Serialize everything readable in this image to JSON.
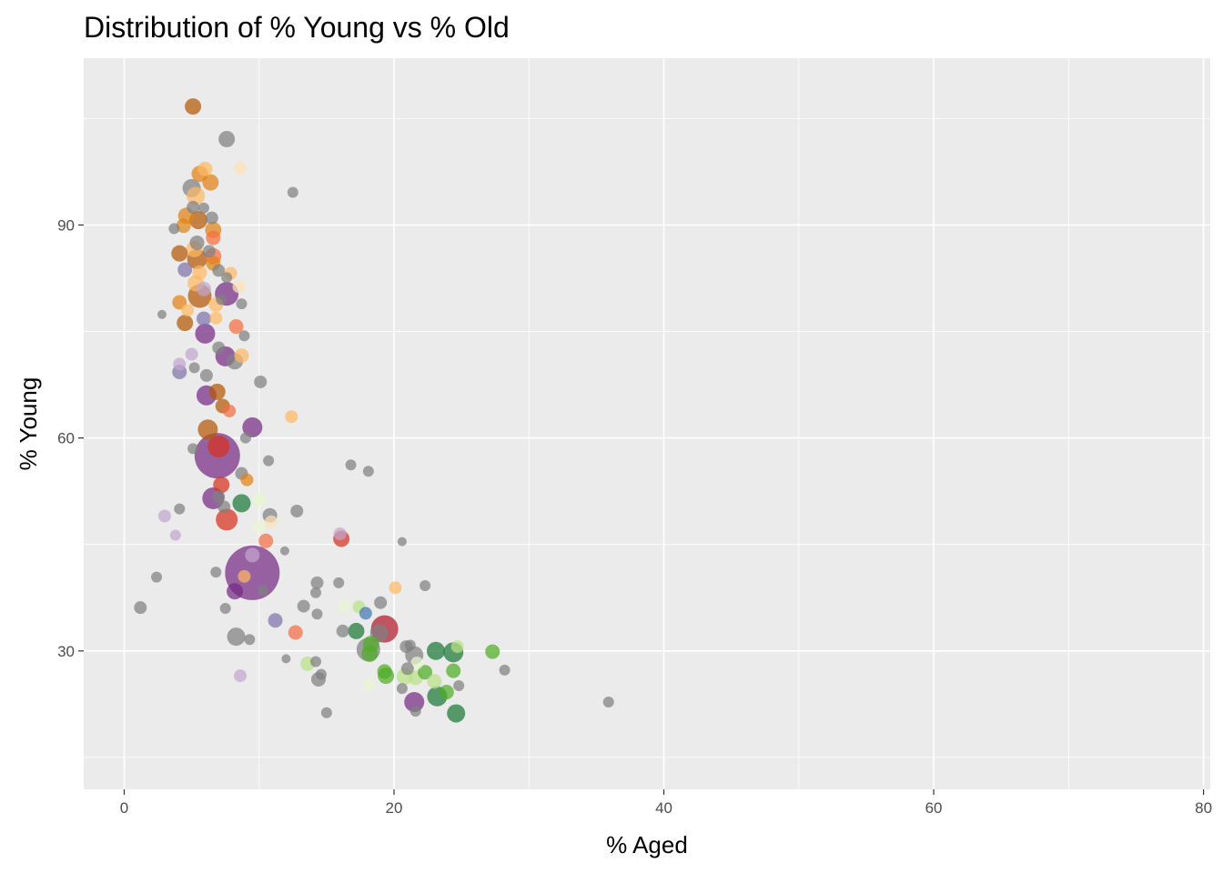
{
  "chart_data": {
    "type": "scatter",
    "title": "Distribution of % Young vs % Old",
    "xlabel": "% Aged",
    "ylabel": "% Young",
    "xlim": [
      -3,
      80.5
    ],
    "ylim": [
      10.5,
      113.5
    ],
    "xticks": [
      0,
      20,
      40,
      60,
      80
    ],
    "yticks": [
      30,
      60,
      90
    ],
    "grid": true,
    "legend": "none",
    "colors": {
      "panel": "#EBEBEB",
      "grid": "#FFFFFF",
      "grey": "#7F7F7F",
      "dark_orange": "#B35806",
      "orange": "#E08214",
      "light_orange": "#FDB863",
      "pale_orange": "#FEE0B6",
      "dark_purple": "#542788",
      "purple": "#8073AC",
      "lavender": "#C2A5CF",
      "magenta_purple": "#762A83",
      "red": "#D7301F",
      "salmon": "#F46D43",
      "crimson": "#B2182B",
      "dark_green": "#1B7837",
      "green": "#4DAC26",
      "light_green": "#B8E186",
      "pale_green": "#E6F5D0",
      "blue": "#4575B4"
    },
    "points": [
      {
        "x": 5.1,
        "y": 106.7,
        "size": 9,
        "color": "#B35806"
      },
      {
        "x": 7.6,
        "y": 102.1,
        "size": 9,
        "color": "#7F7F7F"
      },
      {
        "x": 8.6,
        "y": 98.0,
        "size": 7,
        "color": "#FEE0B6"
      },
      {
        "x": 6.0,
        "y": 97.9,
        "size": 8,
        "color": "#FDB863"
      },
      {
        "x": 5.6,
        "y": 97.2,
        "size": 9,
        "color": "#E08214"
      },
      {
        "x": 6.4,
        "y": 96.0,
        "size": 9,
        "color": "#E08214"
      },
      {
        "x": 5.0,
        "y": 95.2,
        "size": 10,
        "color": "#7F7F7F"
      },
      {
        "x": 5.3,
        "y": 94.1,
        "size": 10,
        "color": "#FDB863"
      },
      {
        "x": 12.5,
        "y": 94.6,
        "size": 6,
        "color": "#7F7F7F"
      },
      {
        "x": 5.1,
        "y": 92.5,
        "size": 7,
        "color": "#7F7F7F"
      },
      {
        "x": 5.9,
        "y": 92.4,
        "size": 6,
        "color": "#7F7F7F"
      },
      {
        "x": 4.6,
        "y": 91.3,
        "size": 9,
        "color": "#E08214"
      },
      {
        "x": 6.5,
        "y": 91.0,
        "size": 7,
        "color": "#7F7F7F"
      },
      {
        "x": 5.5,
        "y": 90.7,
        "size": 10,
        "color": "#B35806"
      },
      {
        "x": 4.4,
        "y": 89.9,
        "size": 8,
        "color": "#E08214"
      },
      {
        "x": 3.7,
        "y": 89.5,
        "size": 6,
        "color": "#7F7F7F"
      },
      {
        "x": 6.6,
        "y": 89.3,
        "size": 9,
        "color": "#E08214"
      },
      {
        "x": 6.6,
        "y": 88.2,
        "size": 8,
        "color": "#F46D43"
      },
      {
        "x": 5.4,
        "y": 87.5,
        "size": 8,
        "color": "#7F7F7F"
      },
      {
        "x": 5.2,
        "y": 86.6,
        "size": 9,
        "color": "#FDB863"
      },
      {
        "x": 4.1,
        "y": 86.0,
        "size": 9,
        "color": "#B35806"
      },
      {
        "x": 6.3,
        "y": 86.3,
        "size": 7,
        "color": "#7F7F7F"
      },
      {
        "x": 6.6,
        "y": 85.6,
        "size": 9,
        "color": "#F46D43"
      },
      {
        "x": 5.4,
        "y": 85.2,
        "size": 11,
        "color": "#B35806"
      },
      {
        "x": 6.6,
        "y": 84.6,
        "size": 8,
        "color": "#E08214"
      },
      {
        "x": 4.5,
        "y": 83.7,
        "size": 8,
        "color": "#8073AC"
      },
      {
        "x": 5.6,
        "y": 83.3,
        "size": 8,
        "color": "#FDB863"
      },
      {
        "x": 7.0,
        "y": 83.6,
        "size": 7,
        "color": "#7F7F7F"
      },
      {
        "x": 7.9,
        "y": 83.2,
        "size": 7,
        "color": "#FDB863"
      },
      {
        "x": 7.6,
        "y": 82.6,
        "size": 6,
        "color": "#7F7F7F"
      },
      {
        "x": 5.3,
        "y": 81.8,
        "size": 9,
        "color": "#FDB863"
      },
      {
        "x": 8.5,
        "y": 81.3,
        "size": 7,
        "color": "#FEE0B6"
      },
      {
        "x": 5.9,
        "y": 81.0,
        "size": 8,
        "color": "#C2A5CF"
      },
      {
        "x": 7.6,
        "y": 80.3,
        "size": 13,
        "color": "#762A83"
      },
      {
        "x": 5.6,
        "y": 80.0,
        "size": 13,
        "color": "#B35806"
      },
      {
        "x": 7.2,
        "y": 79.5,
        "size": 6,
        "color": "#7F7F7F"
      },
      {
        "x": 4.1,
        "y": 79.1,
        "size": 8,
        "color": "#E08214"
      },
      {
        "x": 6.8,
        "y": 78.8,
        "size": 8,
        "color": "#FDB863"
      },
      {
        "x": 8.7,
        "y": 78.9,
        "size": 6,
        "color": "#7F7F7F"
      },
      {
        "x": 4.7,
        "y": 78.0,
        "size": 7,
        "color": "#FDB863"
      },
      {
        "x": 2.8,
        "y": 77.4,
        "size": 5,
        "color": "#7F7F7F"
      },
      {
        "x": 5.9,
        "y": 76.8,
        "size": 8,
        "color": "#8073AC"
      },
      {
        "x": 6.8,
        "y": 76.9,
        "size": 7,
        "color": "#FDB863"
      },
      {
        "x": 4.5,
        "y": 76.2,
        "size": 9,
        "color": "#B35806"
      },
      {
        "x": 8.3,
        "y": 75.7,
        "size": 8,
        "color": "#F46D43"
      },
      {
        "x": 6.0,
        "y": 74.7,
        "size": 11,
        "color": "#762A83"
      },
      {
        "x": 8.9,
        "y": 74.4,
        "size": 6,
        "color": "#7F7F7F"
      },
      {
        "x": 7.0,
        "y": 72.7,
        "size": 7,
        "color": "#7F7F7F"
      },
      {
        "x": 5.0,
        "y": 71.8,
        "size": 7,
        "color": "#C2A5CF"
      },
      {
        "x": 8.7,
        "y": 71.6,
        "size": 8,
        "color": "#FDB863"
      },
      {
        "x": 7.5,
        "y": 71.5,
        "size": 11,
        "color": "#762A83"
      },
      {
        "x": 8.2,
        "y": 70.8,
        "size": 9,
        "color": "#7F7F7F"
      },
      {
        "x": 4.1,
        "y": 70.4,
        "size": 7,
        "color": "#C2A5CF"
      },
      {
        "x": 5.2,
        "y": 69.9,
        "size": 6,
        "color": "#7F7F7F"
      },
      {
        "x": 4.1,
        "y": 69.3,
        "size": 8,
        "color": "#8073AC"
      },
      {
        "x": 6.1,
        "y": 68.8,
        "size": 7,
        "color": "#7F7F7F"
      },
      {
        "x": 10.1,
        "y": 67.9,
        "size": 7,
        "color": "#7F7F7F"
      },
      {
        "x": 6.9,
        "y": 66.5,
        "size": 9,
        "color": "#B35806"
      },
      {
        "x": 6.1,
        "y": 66.0,
        "size": 11,
        "color": "#762A83"
      },
      {
        "x": 7.3,
        "y": 64.5,
        "size": 8,
        "color": "#B35806"
      },
      {
        "x": 7.8,
        "y": 63.8,
        "size": 7,
        "color": "#F46D43"
      },
      {
        "x": 12.4,
        "y": 63.0,
        "size": 7,
        "color": "#FDB863"
      },
      {
        "x": 9.5,
        "y": 61.5,
        "size": 11,
        "color": "#762A83"
      },
      {
        "x": 6.2,
        "y": 61.2,
        "size": 11,
        "color": "#B35806"
      },
      {
        "x": 9.0,
        "y": 60.0,
        "size": 6,
        "color": "#7F7F7F"
      },
      {
        "x": 5.1,
        "y": 58.5,
        "size": 6,
        "color": "#7F7F7F"
      },
      {
        "x": 7.0,
        "y": 58.8,
        "size": 12,
        "color": "#D7301F"
      },
      {
        "x": 6.9,
        "y": 57.5,
        "size": 25,
        "color": "#762A83"
      },
      {
        "x": 10.7,
        "y": 56.8,
        "size": 6,
        "color": "#7F7F7F"
      },
      {
        "x": 16.8,
        "y": 56.2,
        "size": 6,
        "color": "#7F7F7F"
      },
      {
        "x": 18.1,
        "y": 55.3,
        "size": 6,
        "color": "#7F7F7F"
      },
      {
        "x": 8.7,
        "y": 55.0,
        "size": 7,
        "color": "#7F7F7F"
      },
      {
        "x": 9.1,
        "y": 54.1,
        "size": 7,
        "color": "#E08214"
      },
      {
        "x": 7.2,
        "y": 53.4,
        "size": 9,
        "color": "#D7301F"
      },
      {
        "x": 7.0,
        "y": 51.7,
        "size": 7,
        "color": "#7F7F7F"
      },
      {
        "x": 6.6,
        "y": 51.5,
        "size": 12,
        "color": "#762A83"
      },
      {
        "x": 10.0,
        "y": 51.3,
        "size": 8,
        "color": "#E6F5D0"
      },
      {
        "x": 8.7,
        "y": 50.8,
        "size": 10,
        "color": "#1B7837"
      },
      {
        "x": 7.4,
        "y": 50.3,
        "size": 7,
        "color": "#7F7F7F"
      },
      {
        "x": 4.1,
        "y": 50.0,
        "size": 6,
        "color": "#7F7F7F"
      },
      {
        "x": 12.8,
        "y": 49.7,
        "size": 7,
        "color": "#7F7F7F"
      },
      {
        "x": 3.0,
        "y": 49.0,
        "size": 7,
        "color": "#C2A5CF"
      },
      {
        "x": 10.8,
        "y": 49.1,
        "size": 8,
        "color": "#7F7F7F"
      },
      {
        "x": 7.6,
        "y": 48.5,
        "size": 12,
        "color": "#D7301F"
      },
      {
        "x": 10.9,
        "y": 48.2,
        "size": 7,
        "color": "#FEE0B6"
      },
      {
        "x": 10.0,
        "y": 47.5,
        "size": 7,
        "color": "#E6F5D0"
      },
      {
        "x": 16.0,
        "y": 46.5,
        "size": 7,
        "color": "#C2A5CF"
      },
      {
        "x": 3.8,
        "y": 46.3,
        "size": 6,
        "color": "#C2A5CF"
      },
      {
        "x": 16.1,
        "y": 45.8,
        "size": 9,
        "color": "#D7301F"
      },
      {
        "x": 10.5,
        "y": 45.5,
        "size": 8,
        "color": "#F46D43"
      },
      {
        "x": 20.6,
        "y": 45.4,
        "size": 5,
        "color": "#7F7F7F"
      },
      {
        "x": 11.9,
        "y": 44.1,
        "size": 5,
        "color": "#7F7F7F"
      },
      {
        "x": 9.5,
        "y": 43.5,
        "size": 8,
        "color": "#C2A5CF"
      },
      {
        "x": 6.8,
        "y": 41.1,
        "size": 6,
        "color": "#7F7F7F"
      },
      {
        "x": 2.4,
        "y": 40.4,
        "size": 6,
        "color": "#7F7F7F"
      },
      {
        "x": 8.9,
        "y": 40.5,
        "size": 7,
        "color": "#FDB863"
      },
      {
        "x": 9.5,
        "y": 41.0,
        "size": 30,
        "color": "#762A83"
      },
      {
        "x": 14.3,
        "y": 39.6,
        "size": 7,
        "color": "#7F7F7F"
      },
      {
        "x": 15.9,
        "y": 39.6,
        "size": 6,
        "color": "#7F7F7F"
      },
      {
        "x": 20.1,
        "y": 38.9,
        "size": 7,
        "color": "#FDB863"
      },
      {
        "x": 22.3,
        "y": 39.2,
        "size": 6,
        "color": "#7F7F7F"
      },
      {
        "x": 8.2,
        "y": 38.4,
        "size": 9,
        "color": "#762A83"
      },
      {
        "x": 10.3,
        "y": 38.5,
        "size": 6,
        "color": "#7F7F7F"
      },
      {
        "x": 14.2,
        "y": 38.2,
        "size": 6,
        "color": "#7F7F7F"
      },
      {
        "x": 19.0,
        "y": 36.8,
        "size": 7,
        "color": "#7F7F7F"
      },
      {
        "x": 13.3,
        "y": 36.3,
        "size": 7,
        "color": "#7F7F7F"
      },
      {
        "x": 16.3,
        "y": 36.3,
        "size": 7,
        "color": "#E6F5D0"
      },
      {
        "x": 17.4,
        "y": 36.2,
        "size": 7,
        "color": "#B8E186"
      },
      {
        "x": 1.2,
        "y": 36.1,
        "size": 7,
        "color": "#7F7F7F"
      },
      {
        "x": 7.5,
        "y": 36.0,
        "size": 6,
        "color": "#7F7F7F"
      },
      {
        "x": 17.9,
        "y": 35.3,
        "size": 7,
        "color": "#4575B4"
      },
      {
        "x": 14.3,
        "y": 35.2,
        "size": 6,
        "color": "#7F7F7F"
      },
      {
        "x": 11.2,
        "y": 34.3,
        "size": 8,
        "color": "#8073AC"
      },
      {
        "x": 16.2,
        "y": 32.8,
        "size": 7,
        "color": "#7F7F7F"
      },
      {
        "x": 12.7,
        "y": 32.6,
        "size": 8,
        "color": "#F46D43"
      },
      {
        "x": 17.2,
        "y": 32.8,
        "size": 9,
        "color": "#1B7837"
      },
      {
        "x": 19.3,
        "y": 33.1,
        "size": 15,
        "color": "#B2182B"
      },
      {
        "x": 18.9,
        "y": 32.5,
        "size": 10,
        "color": "#7F7F7F"
      },
      {
        "x": 8.3,
        "y": 32.0,
        "size": 10,
        "color": "#7F7F7F"
      },
      {
        "x": 9.3,
        "y": 31.6,
        "size": 6,
        "color": "#7F7F7F"
      },
      {
        "x": 18.3,
        "y": 31.0,
        "size": 9,
        "color": "#4DAC26"
      },
      {
        "x": 20.9,
        "y": 30.6,
        "size": 7,
        "color": "#7F7F7F"
      },
      {
        "x": 18.1,
        "y": 30.2,
        "size": 13,
        "color": "#7F7F7F"
      },
      {
        "x": 21.2,
        "y": 30.8,
        "size": 6,
        "color": "#7F7F7F"
      },
      {
        "x": 23.1,
        "y": 30.0,
        "size": 10,
        "color": "#1B7837"
      },
      {
        "x": 24.4,
        "y": 29.8,
        "size": 11,
        "color": "#1B7837"
      },
      {
        "x": 24.7,
        "y": 30.6,
        "size": 7,
        "color": "#B8E186"
      },
      {
        "x": 27.3,
        "y": 29.9,
        "size": 8,
        "color": "#4DAC26"
      },
      {
        "x": 21.5,
        "y": 29.4,
        "size": 10,
        "color": "#7F7F7F"
      },
      {
        "x": 18.2,
        "y": 29.6,
        "size": 9,
        "color": "#4DAC26"
      },
      {
        "x": 12.0,
        "y": 28.9,
        "size": 5,
        "color": "#7F7F7F"
      },
      {
        "x": 13.6,
        "y": 28.2,
        "size": 8,
        "color": "#B8E186"
      },
      {
        "x": 14.2,
        "y": 28.5,
        "size": 6,
        "color": "#7F7F7F"
      },
      {
        "x": 21.7,
        "y": 28.3,
        "size": 7,
        "color": "#E6F5D0"
      },
      {
        "x": 21.0,
        "y": 27.5,
        "size": 7,
        "color": "#7F7F7F"
      },
      {
        "x": 28.2,
        "y": 27.3,
        "size": 6,
        "color": "#7F7F7F"
      },
      {
        "x": 19.3,
        "y": 27.1,
        "size": 8,
        "color": "#4DAC26"
      },
      {
        "x": 19.4,
        "y": 26.5,
        "size": 9,
        "color": "#4DAC26"
      },
      {
        "x": 20.8,
        "y": 26.4,
        "size": 9,
        "color": "#B8E186"
      },
      {
        "x": 21.6,
        "y": 26.2,
        "size": 8,
        "color": "#B8E186"
      },
      {
        "x": 22.3,
        "y": 27.0,
        "size": 8,
        "color": "#4DAC26"
      },
      {
        "x": 24.4,
        "y": 27.2,
        "size": 8,
        "color": "#4DAC26"
      },
      {
        "x": 14.6,
        "y": 26.7,
        "size": 6,
        "color": "#7F7F7F"
      },
      {
        "x": 14.4,
        "y": 26.0,
        "size": 8,
        "color": "#7F7F7F"
      },
      {
        "x": 8.6,
        "y": 26.5,
        "size": 7,
        "color": "#C2A5CF"
      },
      {
        "x": 23.0,
        "y": 25.7,
        "size": 8,
        "color": "#B8E186"
      },
      {
        "x": 18.1,
        "y": 25.2,
        "size": 7,
        "color": "#E6F5D0"
      },
      {
        "x": 20.6,
        "y": 24.7,
        "size": 6,
        "color": "#7F7F7F"
      },
      {
        "x": 24.8,
        "y": 25.1,
        "size": 6,
        "color": "#7F7F7F"
      },
      {
        "x": 23.9,
        "y": 24.2,
        "size": 8,
        "color": "#4DAC26"
      },
      {
        "x": 23.2,
        "y": 23.6,
        "size": 11,
        "color": "#1B7837"
      },
      {
        "x": 21.5,
        "y": 22.8,
        "size": 11,
        "color": "#762A83"
      },
      {
        "x": 35.9,
        "y": 22.8,
        "size": 6,
        "color": "#7F7F7F"
      },
      {
        "x": 21.6,
        "y": 21.5,
        "size": 6,
        "color": "#7F7F7F"
      },
      {
        "x": 24.6,
        "y": 21.2,
        "size": 10,
        "color": "#1B7837"
      },
      {
        "x": 15.0,
        "y": 21.3,
        "size": 6,
        "color": "#7F7F7F"
      }
    ]
  }
}
